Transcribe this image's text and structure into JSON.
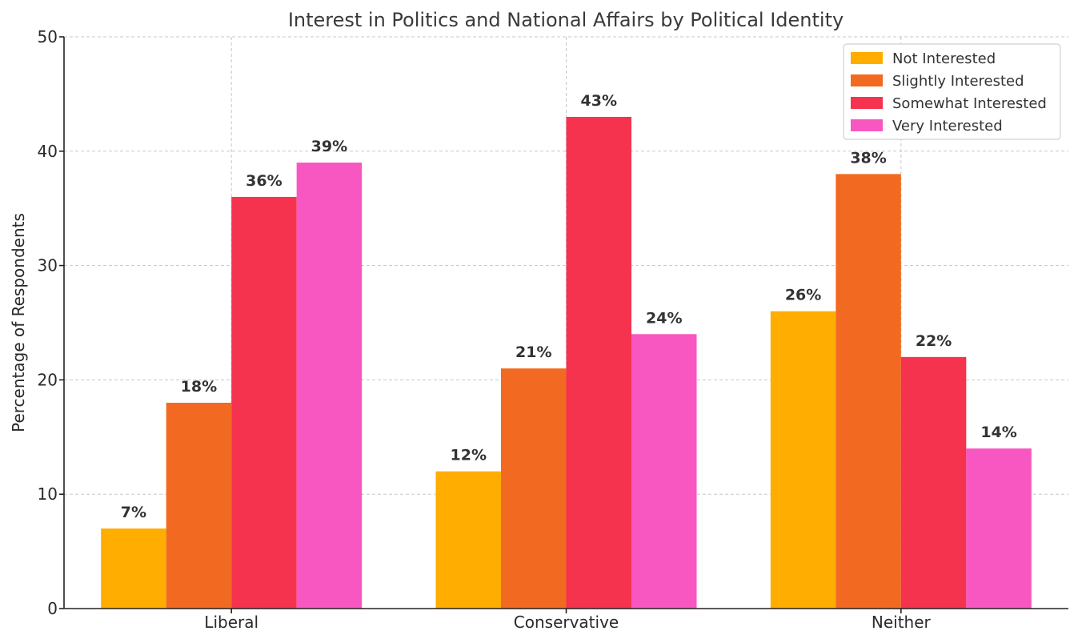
{
  "chart_data": {
    "type": "bar",
    "title": "Interest in Politics and National Affairs by Political Identity",
    "xlabel": "",
    "ylabel": "Percentage of Respondents",
    "categories": [
      "Liberal",
      "Conservative",
      "Neither"
    ],
    "series": [
      {
        "name": "Not Interested",
        "color": "#FFAD00",
        "values": [
          7,
          12,
          26
        ],
        "labels": [
          "7%",
          "12%",
          "26%"
        ]
      },
      {
        "name": "Slightly Interested",
        "color": "#F26A22",
        "values": [
          18,
          21,
          38
        ],
        "labels": [
          "18%",
          "21%",
          "38%"
        ]
      },
      {
        "name": "Somewhat Interested",
        "color": "#F5334F",
        "values": [
          36,
          43,
          22
        ],
        "labels": [
          "36%",
          "43%",
          "22%"
        ]
      },
      {
        "name": "Very Interested",
        "color": "#F857C1",
        "values": [
          39,
          24,
          14
        ],
        "labels": [
          "39%",
          "24%",
          "14%"
        ]
      }
    ],
    "ylim": [
      0,
      50
    ],
    "yticks": [
      "0",
      "10",
      "20",
      "30",
      "40",
      "50"
    ],
    "grid": true,
    "legend_position": "top-right"
  }
}
